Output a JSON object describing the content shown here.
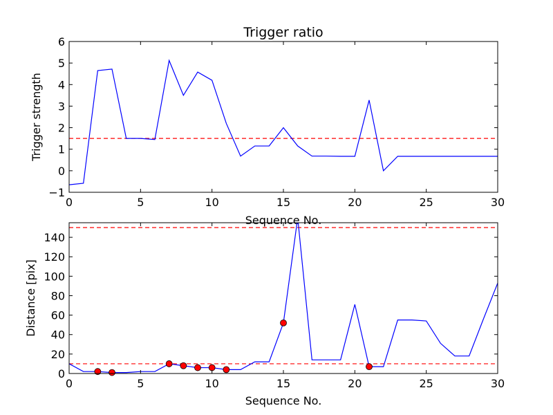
{
  "chart_data": [
    {
      "type": "line",
      "title": "Trigger ratio",
      "xlabel": "Sequence No.",
      "ylabel": "Trigger strength",
      "xlim": [
        0,
        30
      ],
      "ylim": [
        -1,
        6
      ],
      "xticks": [
        0,
        5,
        10,
        15,
        20,
        25,
        30
      ],
      "yticks": [
        -1,
        0,
        1,
        2,
        3,
        4,
        5,
        6
      ],
      "threshold": 1.5,
      "threshold_color": "#ff0000",
      "line_color": "#0000ff",
      "series": [
        {
          "x": [
            0,
            1,
            2,
            3,
            4,
            5,
            6,
            7,
            8,
            9,
            10,
            11,
            12,
            13,
            14,
            15,
            16,
            17,
            18,
            19,
            20,
            21,
            22,
            23,
            24,
            25,
            26,
            27,
            28,
            29,
            30
          ],
          "y": [
            -0.65,
            -0.58,
            4.65,
            4.72,
            1.5,
            1.5,
            1.45,
            5.12,
            3.5,
            4.58,
            4.2,
            2.2,
            0.68,
            1.15,
            1.15,
            2.0,
            1.15,
            0.68,
            0.68,
            0.67,
            0.67,
            3.28,
            0.0,
            0.67,
            0.67,
            0.67,
            0.67,
            0.67,
            0.67,
            0.67,
            0.67
          ]
        }
      ]
    },
    {
      "type": "line",
      "title": "",
      "xlabel": "Sequence No.",
      "ylabel": "Distance [pix]",
      "xlim": [
        0,
        30
      ],
      "ylim": [
        0,
        155
      ],
      "xticks": [
        0,
        5,
        10,
        15,
        20,
        25,
        30
      ],
      "yticks": [
        0,
        20,
        40,
        60,
        80,
        100,
        120,
        140
      ],
      "thresholds": [
        10,
        150
      ],
      "threshold_color": "#ff0000",
      "line_color": "#0000ff",
      "marker_color": "#ff0000",
      "series": [
        {
          "x": [
            0,
            1,
            2,
            3,
            4,
            5,
            6,
            7,
            8,
            9,
            10,
            11,
            12,
            13,
            14,
            15,
            16,
            17,
            18,
            19,
            20,
            21,
            22,
            23,
            24,
            25,
            26,
            27,
            28,
            29,
            30
          ],
          "y": [
            10,
            2,
            2,
            1,
            1,
            2,
            2,
            10,
            8,
            6,
            6,
            4,
            4,
            12,
            12,
            52,
            160,
            14,
            14,
            14,
            71,
            7,
            7,
            55,
            55,
            54,
            31,
            18,
            18,
            56,
            93
          ]
        }
      ],
      "markers": {
        "x": [
          2,
          3,
          7,
          8,
          9,
          10,
          11,
          15,
          21
        ],
        "y": [
          2,
          1,
          10,
          8,
          6,
          6,
          4,
          52,
          7
        ]
      }
    }
  ]
}
